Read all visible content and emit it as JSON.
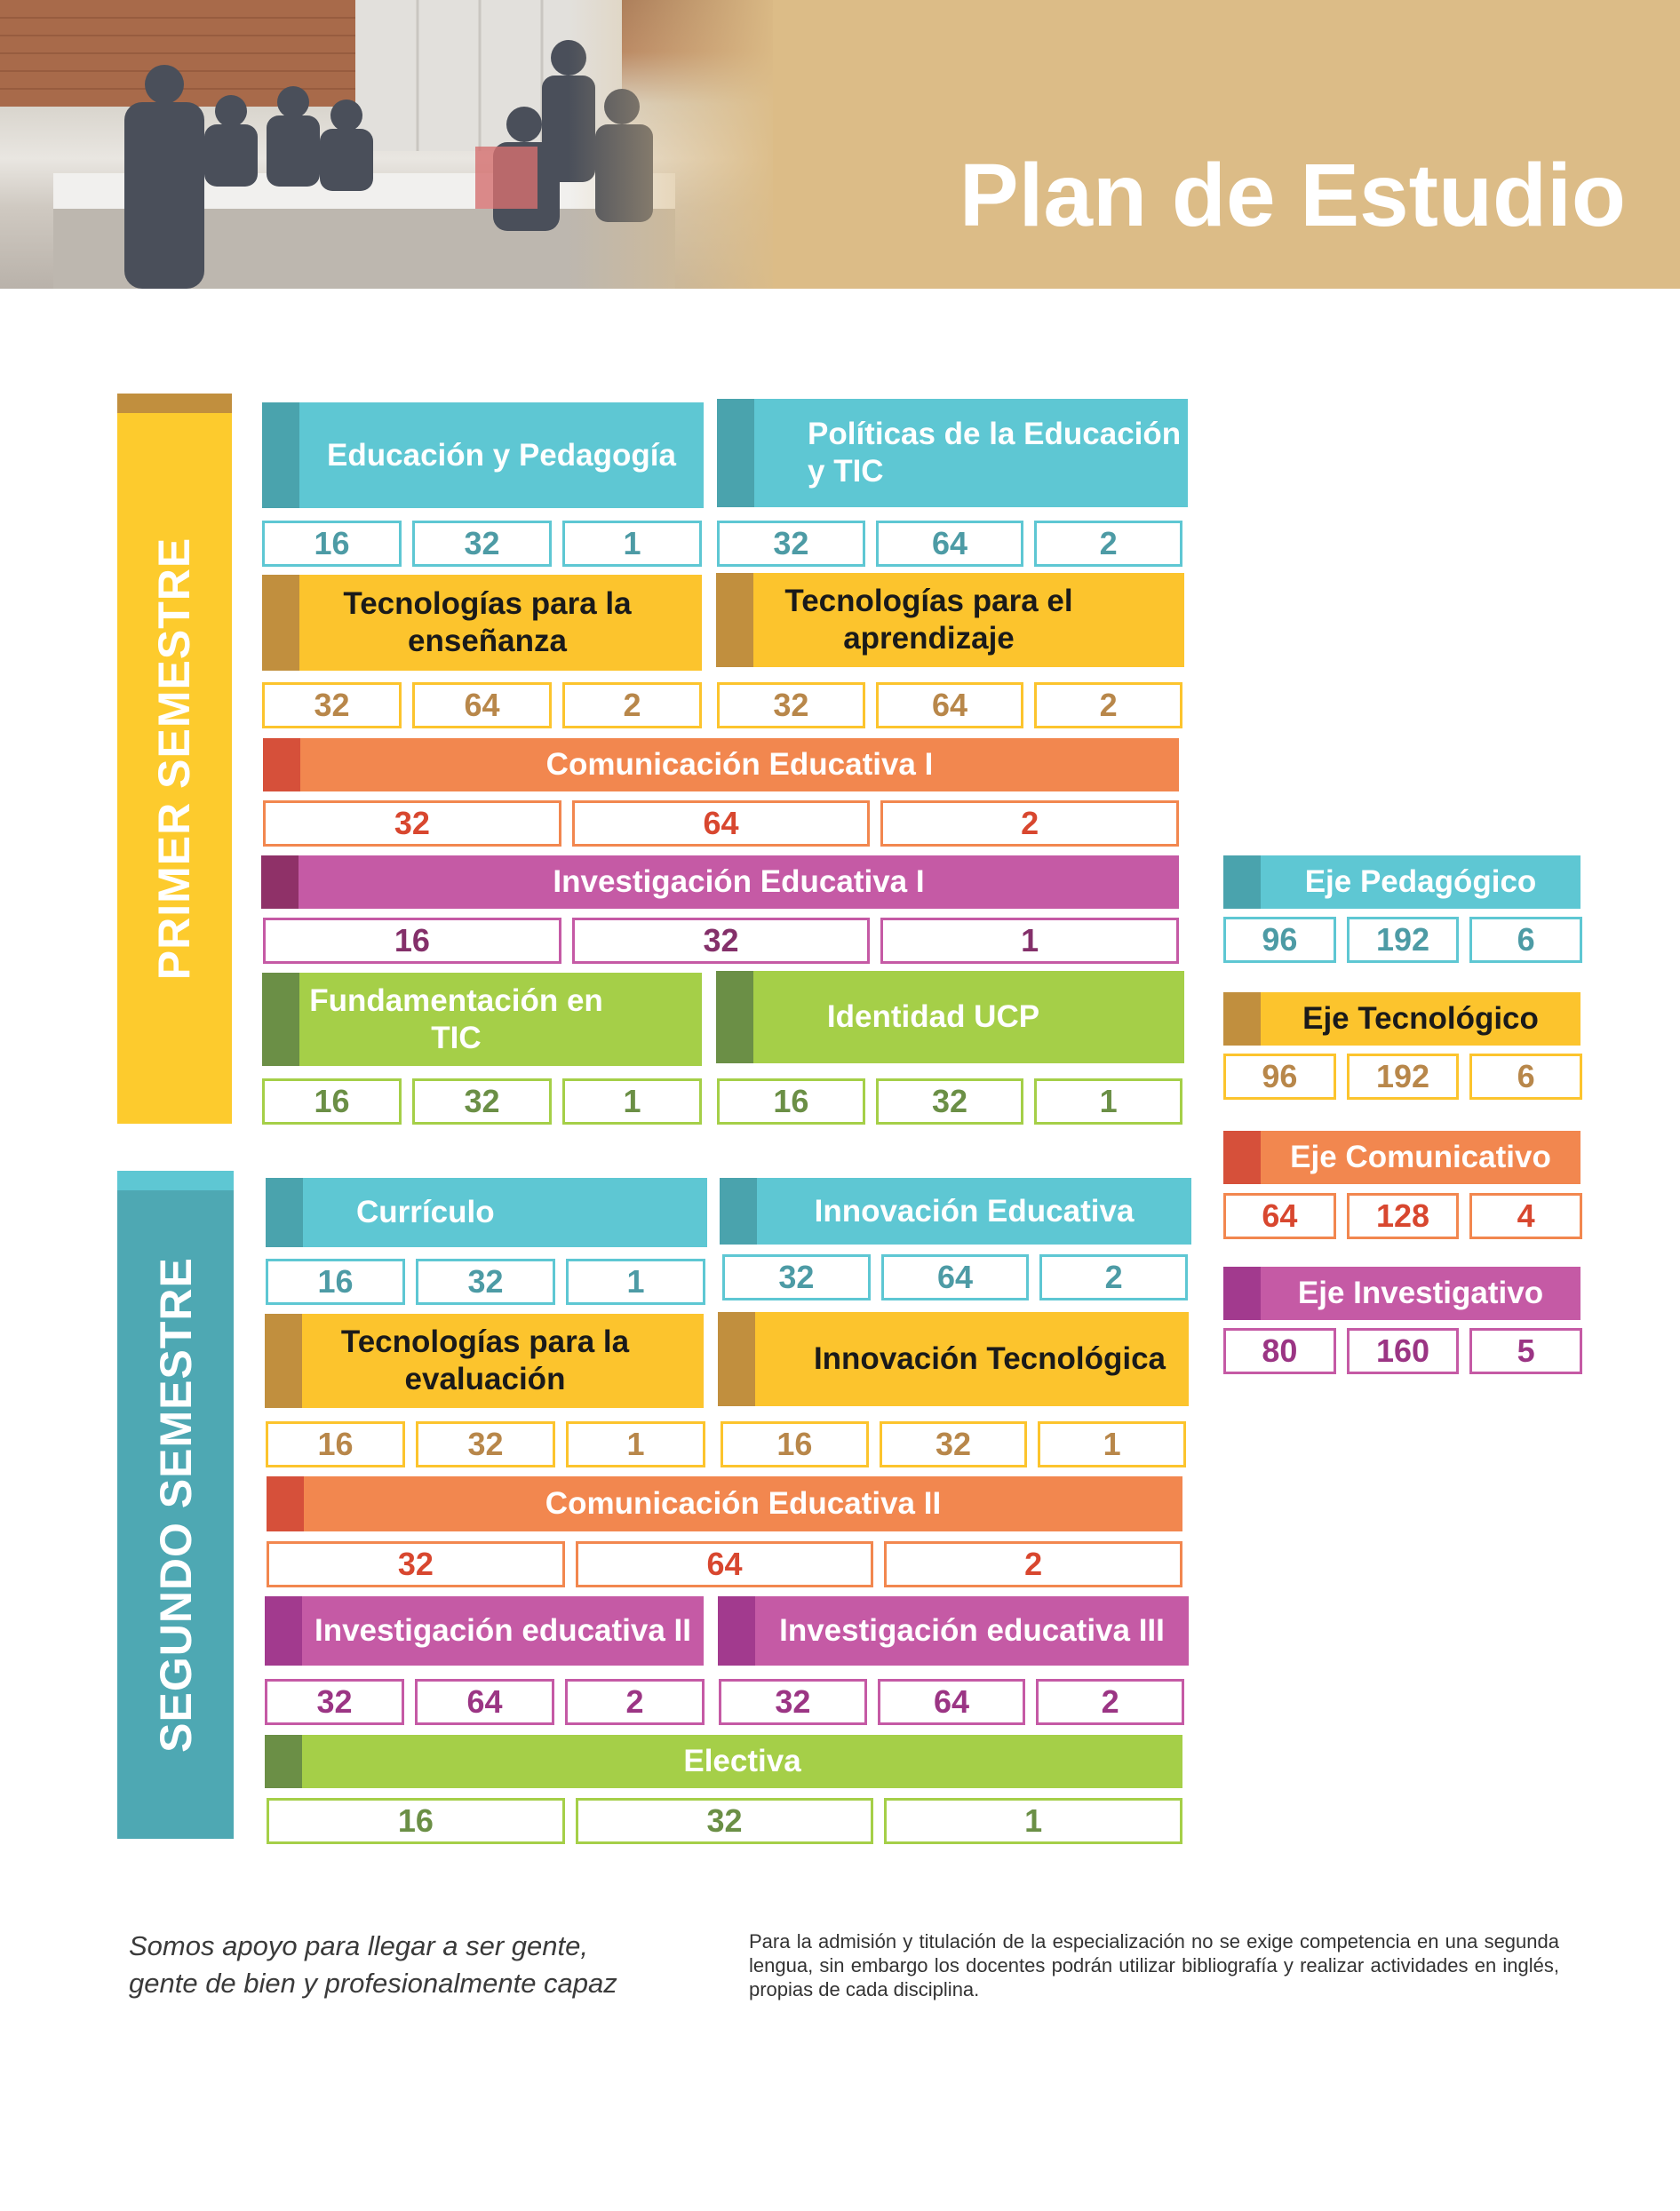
{
  "header": {
    "title": "Plan de Estudio"
  },
  "semesters": [
    {
      "label": "PRIMER SEMESTRE",
      "color": "#fdcb2d",
      "cap_color": "#c18f3e",
      "label_color": "#ffffff",
      "courses": [
        {
          "name": "Educación y Pedagogía",
          "values": [
            "16",
            "32",
            "1"
          ],
          "color": "teal"
        },
        {
          "name": "Políticas de la Educación y TIC",
          "values": [
            "32",
            "64",
            "2"
          ],
          "color": "teal"
        },
        {
          "name": "Tecnologías para la enseñanza",
          "values": [
            "32",
            "64",
            "2"
          ],
          "color": "yellow"
        },
        {
          "name": "Tecnologías para el aprendizaje",
          "values": [
            "32",
            "64",
            "2"
          ],
          "color": "yellow"
        },
        {
          "name": "Comunicación Educativa I",
          "values": [
            "32",
            "64",
            "2"
          ],
          "color": "orange"
        },
        {
          "name": "Investigación Educativa I",
          "values": [
            "16",
            "32",
            "1"
          ],
          "color": "purple"
        },
        {
          "name": "Fundamentación en TIC",
          "values": [
            "16",
            "32",
            "1"
          ],
          "color": "green"
        },
        {
          "name": "Identidad UCP",
          "values": [
            "16",
            "32",
            "1"
          ],
          "color": "green"
        }
      ]
    },
    {
      "label": "SEGUNDO SEMESTRE",
      "color": "#4ea8b3",
      "cap_color": "#5ec7d3",
      "label_color": "#ffffff",
      "courses": [
        {
          "name": "Currículo",
          "values": [
            "16",
            "32",
            "1"
          ],
          "color": "teal"
        },
        {
          "name": "Innovación Educativa",
          "values": [
            "32",
            "64",
            "2"
          ],
          "color": "teal"
        },
        {
          "name": "Tecnologías para la evaluación",
          "values": [
            "16",
            "32",
            "1"
          ],
          "color": "yellow"
        },
        {
          "name": "Innovación Tecnológica",
          "values": [
            "16",
            "32",
            "1"
          ],
          "color": "yellow"
        },
        {
          "name": "Comunicación Educativa II",
          "values": [
            "32",
            "64",
            "2"
          ],
          "color": "orange"
        },
        {
          "name": "Investigación educativa II",
          "values": [
            "32",
            "64",
            "2"
          ],
          "color": "purple2"
        },
        {
          "name": "Investigación educativa III",
          "values": [
            "32",
            "64",
            "2"
          ],
          "color": "purple2"
        },
        {
          "name": "Electiva",
          "values": [
            "16",
            "32",
            "1"
          ],
          "color": "green"
        }
      ]
    }
  ],
  "axes": [
    {
      "name": "Eje Pedagógico",
      "values": [
        "96",
        "192",
        "6"
      ],
      "color": "teal"
    },
    {
      "name": "Eje Tecnológico",
      "values": [
        "96",
        "192",
        "6"
      ],
      "color": "yellow"
    },
    {
      "name": "Eje Comunicativo",
      "values": [
        "64",
        "128",
        "4"
      ],
      "color": "orange"
    },
    {
      "name": "Eje Investigativo",
      "values": [
        "80",
        "160",
        "5"
      ],
      "color": "purple2"
    }
  ],
  "footer": {
    "slogan_line1": "Somos apoyo para llegar a ser gente,",
    "slogan_line2": "gente de bien y profesionalmente capaz",
    "note": "Para la admisión y titulación de la especialización no se exige competencia en una segunda lengua, sin embargo los docentes podrán utilizar bibliografía y realizar actividades en inglés, propias de cada disciplina."
  }
}
